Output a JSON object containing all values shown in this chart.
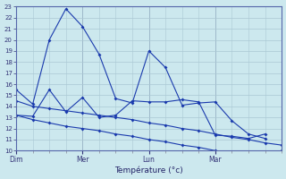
{
  "background_color": "#cce8ee",
  "grid_color": "#aac8d4",
  "line_color": "#1a3aad",
  "xlabel": "Température (°c)",
  "ylim": [
    10,
    23
  ],
  "yticks": [
    10,
    11,
    12,
    13,
    14,
    15,
    16,
    17,
    18,
    19,
    20,
    21,
    22,
    23
  ],
  "day_labels": [
    "Dim",
    "Mer",
    "Lun",
    "Mar"
  ],
  "day_positions": [
    0,
    24,
    48,
    72
  ],
  "total_hours": 96,
  "series1_x": [
    0,
    6,
    12,
    18,
    24,
    30,
    36,
    42,
    48,
    54,
    60,
    66,
    72,
    78,
    84,
    90
  ],
  "series1_y": [
    15.5,
    14.2,
    20.0,
    22.8,
    21.2,
    18.7,
    14.7,
    14.3,
    19.0,
    17.5,
    14.1,
    14.3,
    14.4,
    12.7,
    11.5,
    11.1
  ],
  "series2_x": [
    0,
    6,
    12,
    18,
    24,
    30,
    36,
    42,
    48,
    54,
    60,
    66,
    72,
    78,
    84,
    90
  ],
  "series2_y": [
    13.2,
    13.1,
    15.5,
    13.5,
    14.8,
    13.0,
    13.2,
    14.5,
    14.4,
    14.4,
    14.6,
    14.4,
    11.4,
    11.3,
    11.1,
    11.5
  ],
  "series3_x": [
    0,
    6,
    12,
    18,
    24,
    30,
    36,
    42,
    48,
    54,
    60,
    66,
    72,
    78,
    84,
    90,
    96
  ],
  "series3_y": [
    14.5,
    14.0,
    13.8,
    13.6,
    13.4,
    13.2,
    13.0,
    12.8,
    12.5,
    12.3,
    12.0,
    11.8,
    11.5,
    11.2,
    11.0,
    10.7,
    10.5
  ],
  "series4_x": [
    0,
    6,
    12,
    18,
    24,
    30,
    36,
    42,
    48,
    54,
    60,
    66,
    72,
    78,
    84,
    90,
    96
  ],
  "series4_y": [
    13.2,
    12.8,
    12.5,
    12.2,
    12.0,
    11.8,
    11.5,
    11.3,
    11.0,
    10.8,
    10.5,
    10.3,
    10.0,
    9.8,
    9.6,
    9.7,
    10.0
  ]
}
